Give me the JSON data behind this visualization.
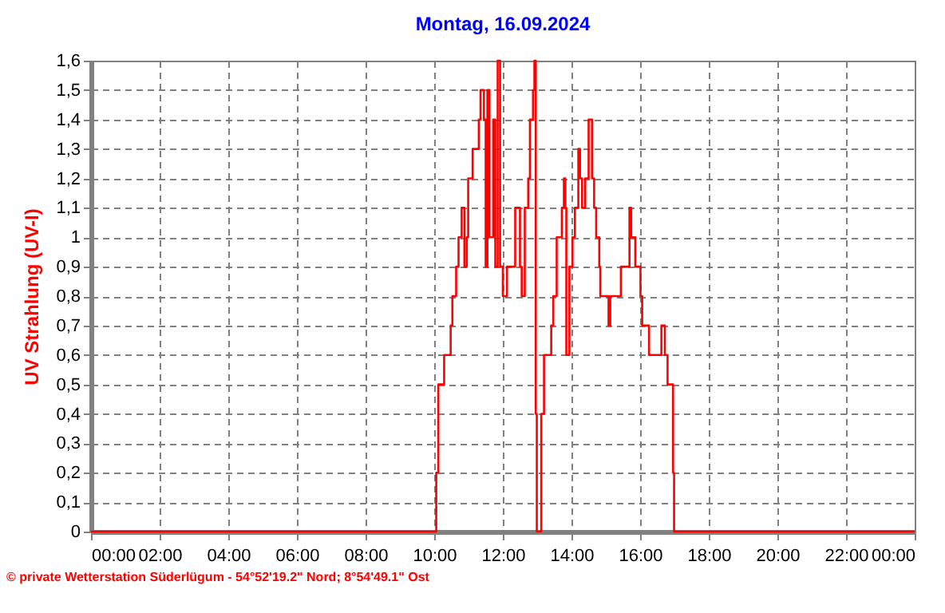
{
  "chart_data": {
    "type": "step",
    "title": "Montag, 16.09.2024",
    "ylabel": "UV Strahlung  (UV-I)",
    "annotations": [
      "© private Wetterstation Süderlügum  -  54°52'19.2\" Nord; 8°54'49.1\" Ost"
    ],
    "xlim": [
      0,
      24
    ],
    "ylim": [
      0,
      1.6
    ],
    "xticks": [
      {
        "value": 0,
        "label": "00:00"
      },
      {
        "value": 2,
        "label": "02:00"
      },
      {
        "value": 4,
        "label": "04:00"
      },
      {
        "value": 6,
        "label": "06:00"
      },
      {
        "value": 8,
        "label": "08:00"
      },
      {
        "value": 10,
        "label": "10:00"
      },
      {
        "value": 12,
        "label": "12:00"
      },
      {
        "value": 14,
        "label": "14:00"
      },
      {
        "value": 16,
        "label": "16:00"
      },
      {
        "value": 18,
        "label": "18:00"
      },
      {
        "value": 20,
        "label": "20:00"
      },
      {
        "value": 22,
        "label": "22:00"
      },
      {
        "value": 24,
        "label": "00:00"
      }
    ],
    "yticks": [
      0,
      {
        "value": 0.1,
        "label": "0,1"
      },
      {
        "value": 0.2,
        "label": "0,2"
      },
      {
        "value": 0.3,
        "label": "0,3"
      },
      {
        "value": 0.4,
        "label": "0,4"
      },
      {
        "value": 0.5,
        "label": "0,5"
      },
      {
        "value": 0.6,
        "label": "0,6"
      },
      {
        "value": 0.7,
        "label": "0,7"
      },
      {
        "value": 0.8,
        "label": "0,8"
      },
      {
        "value": 0.9,
        "label": "0,9"
      },
      1,
      {
        "value": 1.1,
        "label": "1,1"
      },
      {
        "value": 1.2,
        "label": "1,2"
      },
      {
        "value": 1.3,
        "label": "1,3"
      },
      {
        "value": 1.4,
        "label": "1,4"
      },
      {
        "value": 1.5,
        "label": "1,5"
      },
      {
        "value": 1.6,
        "label": "1,6"
      }
    ],
    "grid": true,
    "marker": "none",
    "line_style": "solid",
    "x": [
      0,
      10.06,
      10.12,
      10.29,
      10.48,
      10.53,
      10.64,
      10.71,
      10.8,
      10.88,
      10.95,
      10.99,
      11.12,
      11.3,
      11.35,
      11.45,
      11.5,
      11.55,
      11.61,
      11.72,
      11.78,
      11.85,
      11.92,
      12.0,
      12.12,
      12.36,
      12.5,
      12.55,
      12.64,
      12.74,
      12.79,
      12.88,
      12.92,
      12.96,
      12.99,
      13.12,
      13.2,
      13.41,
      13.47,
      13.57,
      13.72,
      13.78,
      13.82,
      13.85,
      13.94,
      14.03,
      14.1,
      14.2,
      14.25,
      14.31,
      14.4,
      14.5,
      14.6,
      14.66,
      14.72,
      14.81,
      14.84,
      15.08,
      15.13,
      15.44,
      15.69,
      15.74,
      15.86,
      16.01,
      16.06,
      16.26,
      16.62,
      16.72,
      16.8,
      16.96,
      16.99,
      24
    ],
    "series": [
      {
        "color": "#ff0000",
        "values": [
          0,
          0.2,
          0.5,
          0.6,
          0.7,
          0.8,
          0.9,
          1.0,
          1.1,
          0.9,
          1.0,
          1.2,
          1.3,
          1.4,
          1.5,
          1.4,
          0.9,
          1.5,
          1.0,
          1.4,
          0.9,
          1.6,
          0.9,
          0.8,
          0.9,
          1.1,
          0.9,
          0.8,
          1.1,
          1.2,
          1.4,
          1.5,
          1.6,
          0.4,
          0,
          0.4,
          0.6,
          0.7,
          0.8,
          1.0,
          1.1,
          1.2,
          1.1,
          0.6,
          0.9,
          1.0,
          1.1,
          1.3,
          1.2,
          1.1,
          1.2,
          1.4,
          1.2,
          1.1,
          1.0,
          0.9,
          0.8,
          0.7,
          0.8,
          0.9,
          1.1,
          1.0,
          0.9,
          0.8,
          0.7,
          0.6,
          0.7,
          0.6,
          0.5,
          0.2,
          0,
          0
        ]
      }
    ]
  }
}
